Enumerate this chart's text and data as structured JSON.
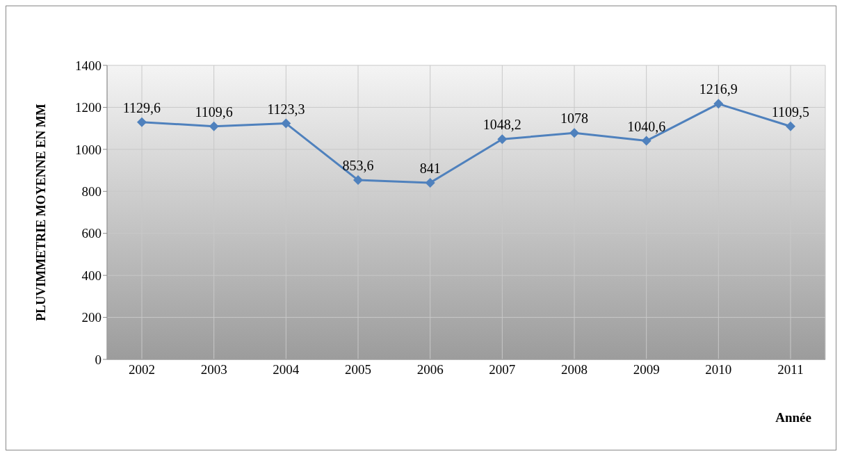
{
  "chart_data": {
    "type": "line",
    "xlabel": "Année",
    "ylabel": "PLUVIMMETRIE MOYENNE EN MM",
    "categories": [
      "2002",
      "2003",
      "2004",
      "2005",
      "2006",
      "2007",
      "2008",
      "2009",
      "2010",
      "2011"
    ],
    "series": [
      {
        "color": "#4f81bd",
        "values": [
          1129.6,
          1109.6,
          1123.3,
          853.6,
          841,
          1048.2,
          1078,
          1040.6,
          1216.9,
          1109.5
        ],
        "value_labels": [
          "1129,6",
          "1109,6",
          "1123,3",
          "853,6",
          "841",
          "1048,2",
          "1078",
          "1040,6",
          "1216,9",
          "1109,5"
        ]
      }
    ],
    "ylim": [
      0,
      1400
    ],
    "yticks": [
      0,
      200,
      400,
      600,
      800,
      1000,
      1200,
      1400
    ],
    "grid": true,
    "marker": "diamond",
    "line_style": "solid",
    "legend": false
  }
}
